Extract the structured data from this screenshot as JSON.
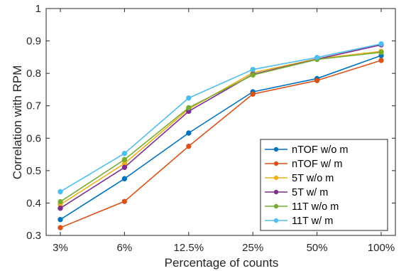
{
  "chart_data": {
    "type": "line",
    "xlabel": "Percentage of counts",
    "ylabel": "Correlation with RPM",
    "categories": [
      "3%",
      "6%",
      "12.5%",
      "25%",
      "50%",
      "100%"
    ],
    "ylim": [
      0.3,
      1
    ],
    "yticks": [
      "0.3",
      "0.4",
      "0.5",
      "0.6",
      "0.7",
      "0.8",
      "0.9",
      "1"
    ],
    "grid": false,
    "legend_position": "bottom-right",
    "series": [
      {
        "name": "nTOF w/o m",
        "color": "#0072BD",
        "values": [
          0.349,
          0.475,
          0.616,
          0.743,
          0.784,
          0.855
        ]
      },
      {
        "name": "nTOF w/ m",
        "color": "#D95319",
        "values": [
          0.324,
          0.405,
          0.575,
          0.736,
          0.778,
          0.84
        ]
      },
      {
        "name": "5T w/o m",
        "color": "#EDB120",
        "values": [
          0.395,
          0.522,
          0.69,
          0.802,
          0.845,
          0.868
        ]
      },
      {
        "name": "5T w/ m",
        "color": "#7E2F8E",
        "values": [
          0.384,
          0.51,
          0.683,
          0.797,
          0.844,
          0.888
        ]
      },
      {
        "name": "11T w/o m",
        "color": "#77AC30",
        "values": [
          0.404,
          0.534,
          0.694,
          0.795,
          0.843,
          0.865
        ]
      },
      {
        "name": "11T w/ m",
        "color": "#4DBEEE",
        "values": [
          0.435,
          0.553,
          0.724,
          0.812,
          0.849,
          0.891
        ]
      }
    ]
  }
}
